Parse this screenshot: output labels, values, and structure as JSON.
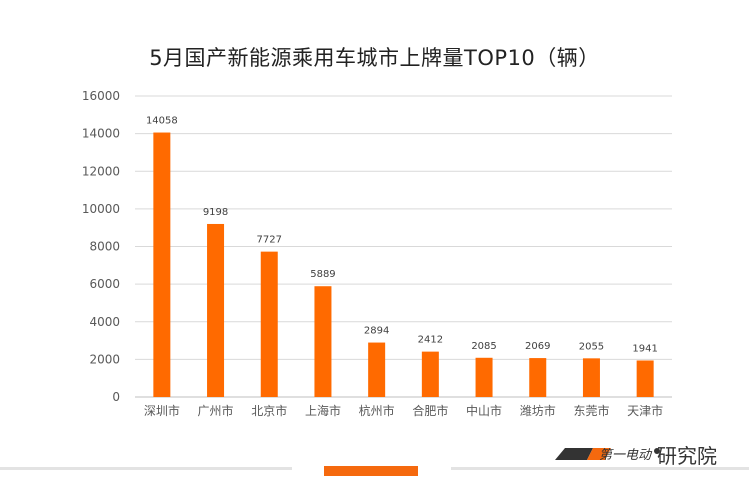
{
  "chart_data": {
    "type": "bar",
    "title": "5月国产新能源乘用车城市上牌量TOP10（辆）",
    "xlabel": "",
    "ylabel": "",
    "categories": [
      "深圳市",
      "广州市",
      "北京市",
      "上海市",
      "杭州市",
      "合肥市",
      "中山市",
      "潍坊市",
      "东莞市",
      "天津市"
    ],
    "values": [
      14058,
      9198,
      7727,
      5889,
      2894,
      2412,
      2085,
      2069,
      2055,
      1941
    ],
    "ylim": [
      0,
      16000
    ],
    "yticks": [
      0,
      2000,
      4000,
      6000,
      8000,
      10000,
      12000,
      14000,
      16000
    ],
    "grid": true,
    "bar_color": "#FF6A00"
  },
  "branding": {
    "text": "研究院",
    "logo_text": "第一电动"
  }
}
